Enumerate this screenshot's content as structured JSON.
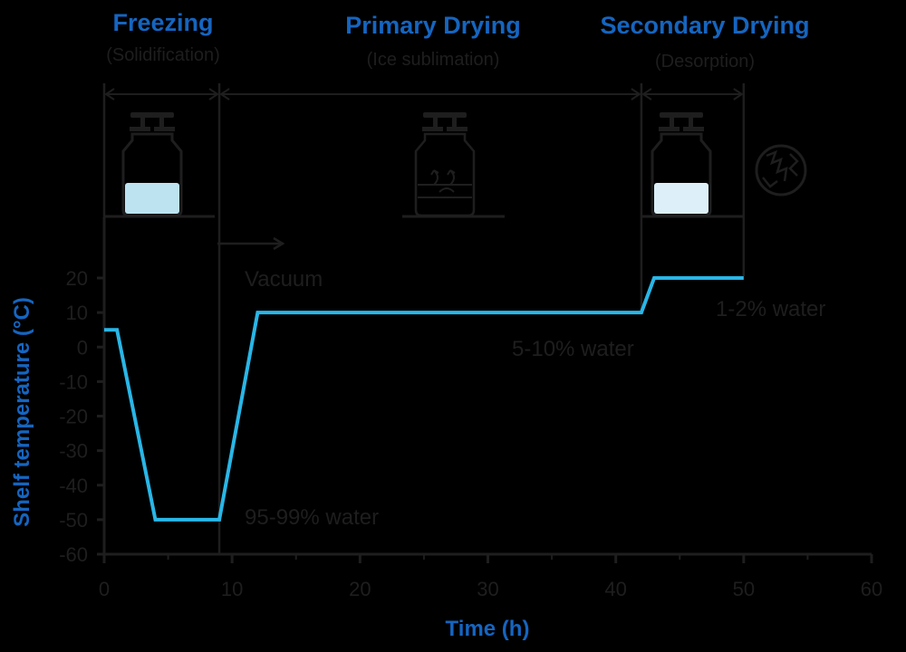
{
  "colors": {
    "background": "#000000",
    "accent": "#1565C0",
    "series": "#29B6E6",
    "ink": "#1E1E1E",
    "liquid_dark": "#BDE3F1",
    "liquid_light": "#DDEFF8"
  },
  "phases": [
    {
      "title": "Freezing",
      "subtitle": "(Solidification)"
    },
    {
      "title": "Primary Drying",
      "subtitle": "(Ice sublimation)"
    },
    {
      "title": "Secondary Drying",
      "subtitle": "(Desorption)"
    }
  ],
  "icons": [
    "vial-frozen-icon",
    "vial-sublimation-icon",
    "vial-dried-icon",
    "dried-cake-icon"
  ],
  "annotations": {
    "vacuum": "Vacuum",
    "water_freezing": "95-99% water",
    "water_primary": "5-10% water",
    "water_secondary": "1-2% water"
  },
  "chart_data": {
    "type": "line",
    "xlabel": "Time (h)",
    "ylabel": "Shelf temperature (°C)",
    "xlim": [
      0,
      60
    ],
    "ylim": [
      -60,
      20
    ],
    "xticks": [
      0,
      10,
      20,
      30,
      40,
      50,
      60
    ],
    "yticks": [
      20,
      10,
      0,
      -10,
      -20,
      -30,
      -40,
      -50,
      -60
    ],
    "grid": false,
    "series": [
      {
        "x": [
          0,
          1,
          4,
          9,
          12,
          42,
          43,
          50
        ],
        "y": [
          5,
          5,
          -50,
          -50,
          10,
          10,
          20,
          20
        ]
      }
    ],
    "phase_boundaries_x": [
      0,
      9,
      42,
      50
    ]
  }
}
